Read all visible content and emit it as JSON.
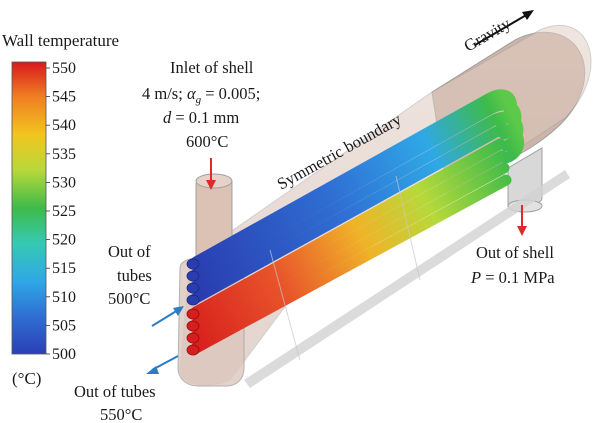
{
  "legend": {
    "title": "Wall temperature",
    "unit": "(°C)",
    "min": 500,
    "max": 550,
    "ticks": [
      "550",
      "545",
      "540",
      "535",
      "530",
      "525",
      "520",
      "515",
      "510",
      "505",
      "500"
    ],
    "colormap": [
      "#d7191c",
      "#f07f22",
      "#f2c51f",
      "#b7d93a",
      "#3ebb4a",
      "#36c9b2",
      "#2fa8e6",
      "#2f6fd4",
      "#2b3fb6"
    ]
  },
  "annotations": {
    "gravity": "Gravity",
    "inlet_title": "Inlet of shell",
    "inlet_line1_pre": "4 m/s; ",
    "inlet_alpha": "α",
    "inlet_alpha_sub": "g",
    "inlet_line1_post": " = 0.005;",
    "inlet_d_var": "d",
    "inlet_d_rest": " = 0.1 mm",
    "inlet_temp": "600°C",
    "symmetric": "Symmetric boundary",
    "out_tubes_top_1": "Out of",
    "out_tubes_top_2": "tubes",
    "out_tubes_top_3": "500°C",
    "out_shell_1": "Out of shell",
    "out_shell_var": "P",
    "out_shell_rest": " = 0.1 MPa",
    "out_tubes_bottom_1": "Out of tubes",
    "out_tubes_bottom_2": "550°C"
  },
  "colors": {
    "arrow_red": "#e02a2a",
    "arrow_blue": "#2a7cc4",
    "shell_fill": "#d9c3b8",
    "shell_stroke": "#a0a0a0"
  }
}
